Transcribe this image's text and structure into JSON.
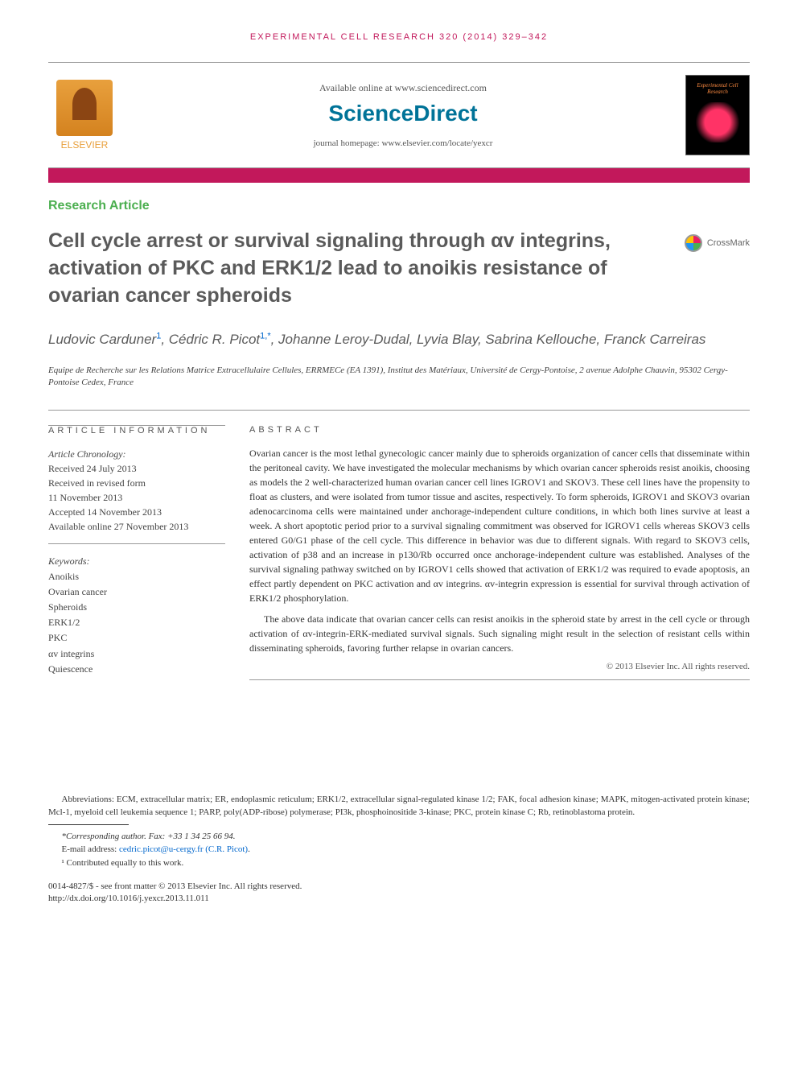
{
  "header": {
    "citation": "EXPERIMENTAL CELL RESEARCH 320 (2014) 329–342",
    "available_online": "Available online at www.sciencedirect.com",
    "sciencedirect": "ScienceDirect",
    "journal_homepage": "journal homepage: www.elsevier.com/locate/yexcr",
    "elsevier_label": "ELSEVIER",
    "journal_cover_title": "Experimental Cell Research"
  },
  "article": {
    "type": "Research Article",
    "title": "Cell cycle arrest or survival signaling through αv integrins, activation of PKC and ERK1/2 lead to anoikis resistance of ovarian cancer spheroids",
    "crossmark": "CrossMark",
    "authors_html": "Ludovic Carduner<sup>1</sup>, Cédric R. Picot<sup>1,*</sup>, Johanne Leroy-Dudal, Lyvia Blay, Sabrina Kellouche, Franck Carreiras",
    "affiliation": "Equipe de Recherche sur les Relations Matrice Extracellulaire Cellules, ERRMECe (EA 1391), Institut des Matériaux, Université de Cergy-Pontoise, 2 avenue Adolphe Chauvin, 95302 Cergy-Pontoise Cedex, France"
  },
  "info": {
    "heading": "ARTICLE INFORMATION",
    "chronology_label": "Article Chronology:",
    "received": "Received 24 July 2013",
    "revised_label": "Received in revised form",
    "revised_date": "11 November 2013",
    "accepted": "Accepted 14 November 2013",
    "online": "Available online 27 November 2013",
    "keywords_label": "Keywords:",
    "keywords": [
      "Anoikis",
      "Ovarian cancer",
      "Spheroids",
      "ERK1/2",
      "PKC",
      "αv integrins",
      "Quiescence"
    ]
  },
  "abstract": {
    "heading": "ABSTRACT",
    "p1": "Ovarian cancer is the most lethal gynecologic cancer mainly due to spheroids organization of cancer cells that disseminate within the peritoneal cavity. We have investigated the molecular mechanisms by which ovarian cancer spheroids resist anoikis, choosing as models the 2 well-characterized human ovarian cancer cell lines IGROV1 and SKOV3. These cell lines have the propensity to float as clusters, and were isolated from tumor tissue and ascites, respectively. To form spheroids, IGROV1 and SKOV3 ovarian adenocarcinoma cells were maintained under anchorage-independent culture conditions, in which both lines survive at least a week. A short apoptotic period prior to a survival signaling commitment was observed for IGROV1 cells whereas SKOV3 cells entered G0/G1 phase of the cell cycle. This difference in behavior was due to different signals. With regard to SKOV3 cells, activation of p38 and an increase in p130/Rb occurred once anchorage-independent culture was established. Analyses of the survival signaling pathway switched on by IGROV1 cells showed that activation of ERK1/2 was required to evade apoptosis, an effect partly dependent on PKC activation and αv integrins. αv-integrin expression is essential for survival through activation of ERK1/2 phosphorylation.",
    "p2": "The above data indicate that ovarian cancer cells can resist anoikis in the spheroid state by arrest in the cell cycle or through activation of αv-integrin-ERK-mediated survival signals. Such signaling might result in the selection of resistant cells within disseminating spheroids, favoring further relapse in ovarian cancers.",
    "copyright": "© 2013 Elsevier Inc. All rights reserved."
  },
  "footer": {
    "abbreviations": "Abbreviations: ECM, extracellular matrix; ER, endoplasmic reticulum; ERK1/2, extracellular signal-regulated kinase 1/2; FAK, focal adhesion kinase; MAPK, mitogen-activated protein kinase; Mcl-1, myeloid cell leukemia sequence 1; PARP, poly(ADP-ribose) polymerase; PI3k, phosphoinositide 3-kinase; PKC, protein kinase C; Rb, retinoblastoma protein.",
    "corresponding": "*Corresponding author. Fax: +33 1 34 25 66 94.",
    "email_label": "E-mail address: ",
    "email": "cedric.picot@u-cergy.fr (C.R. Picot)",
    "email_suffix": ".",
    "contributed": "¹ Contributed equally to this work.",
    "issn": "0014-4827/$ - see front matter © 2013 Elsevier Inc. All rights reserved.",
    "doi": "http://dx.doi.org/10.1016/j.yexcr.2013.11.011"
  },
  "colors": {
    "pink": "#c2185b",
    "green": "#4caf50",
    "sciencedirect": "#007398",
    "link": "#0066cc",
    "heading_gray": "#5a5a5a"
  }
}
